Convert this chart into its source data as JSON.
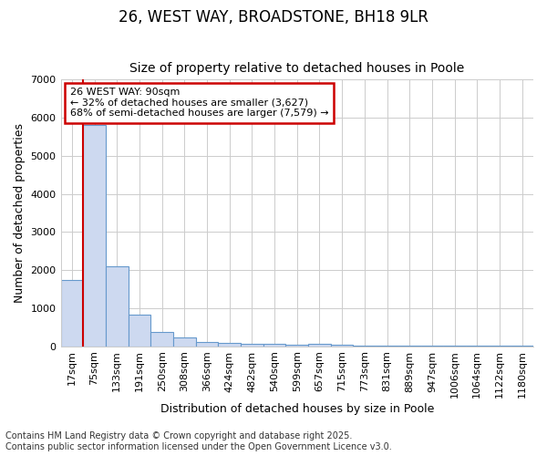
{
  "title1": "26, WEST WAY, BROADSTONE, BH18 9LR",
  "title2": "Size of property relative to detached houses in Poole",
  "xlabel": "Distribution of detached houses by size in Poole",
  "ylabel": "Number of detached properties",
  "categories": [
    "17sqm",
    "75sqm",
    "133sqm",
    "191sqm",
    "250sqm",
    "308sqm",
    "366sqm",
    "424sqm",
    "482sqm",
    "540sqm",
    "599sqm",
    "657sqm",
    "715sqm",
    "773sqm",
    "831sqm",
    "889sqm",
    "947sqm",
    "1006sqm",
    "1064sqm",
    "1122sqm",
    "1180sqm"
  ],
  "values": [
    1750,
    5800,
    2100,
    820,
    370,
    230,
    120,
    90,
    70,
    60,
    45,
    55,
    40,
    10,
    10,
    8,
    5,
    4,
    3,
    2,
    2
  ],
  "bar_color": "#cdd9f0",
  "bar_edge_color": "#6699cc",
  "annotation_box_text": "26 WEST WAY: 90sqm\n← 32% of detached houses are smaller (3,627)\n68% of semi-detached houses are larger (7,579) →",
  "annotation_box_color": "#ffffff",
  "annotation_box_edge_color": "#cc0000",
  "vline_color": "#cc0000",
  "vline_x": 0.5,
  "ylim": [
    0,
    7000
  ],
  "yticks": [
    0,
    1000,
    2000,
    3000,
    4000,
    5000,
    6000,
    7000
  ],
  "grid_color": "#cccccc",
  "bg_color": "#ffffff",
  "plot_bg_color": "#ffffff",
  "footer": "Contains HM Land Registry data © Crown copyright and database right 2025.\nContains public sector information licensed under the Open Government Licence v3.0.",
  "title_fontsize": 12,
  "subtitle_fontsize": 10,
  "axis_label_fontsize": 9,
  "tick_fontsize": 8,
  "footer_fontsize": 7
}
